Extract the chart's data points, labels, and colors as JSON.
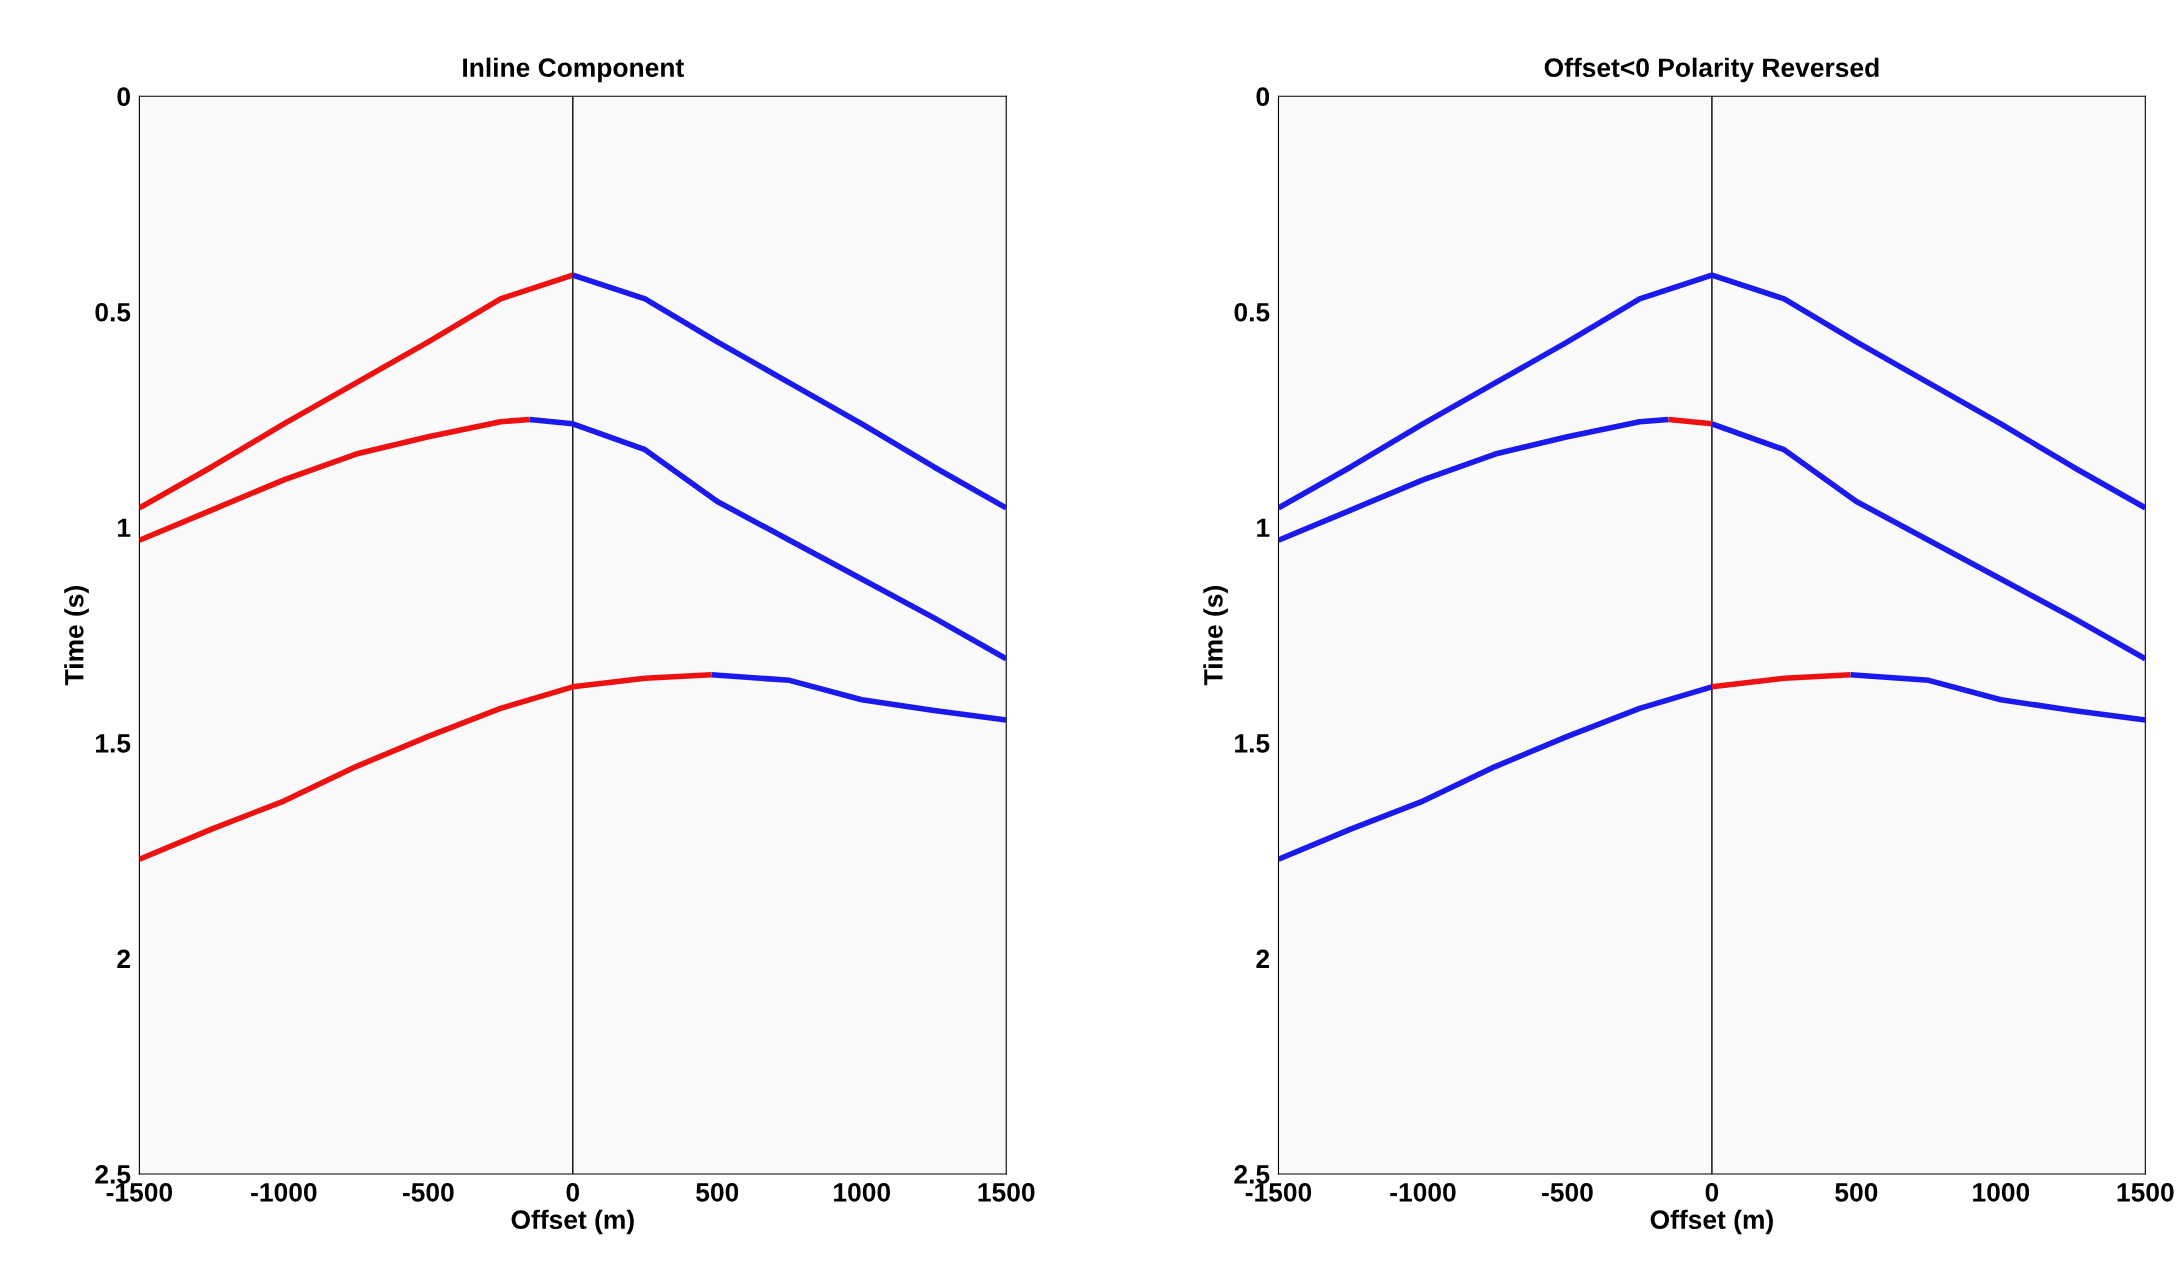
{
  "chart_data": [
    {
      "type": "line",
      "title": "Inline Component",
      "xlabel": "Offset (m)",
      "ylabel": "Time (s)",
      "xlim": [
        -1500,
        1500
      ],
      "ylim": [
        2.5,
        0
      ],
      "xticks": [
        -1500,
        -1000,
        -500,
        0,
        500,
        1000,
        1500
      ],
      "yticks": [
        0,
        0.5,
        1,
        1.5,
        2,
        2.5
      ],
      "grid": false,
      "ref_lines": [
        {
          "axis": "x",
          "value": 0,
          "color": "#000000"
        }
      ],
      "series": [
        {
          "color": "#ee1111",
          "x": [
            -1500,
            -1250,
            -1000,
            -750,
            -500,
            -250,
            0
          ],
          "values": [
            0.955,
            0.86,
            0.76,
            0.665,
            0.57,
            0.47,
            0.415
          ]
        },
        {
          "color": "#1a1aee",
          "x": [
            0,
            250,
            500,
            750,
            1000,
            1250,
            1500
          ],
          "values": [
            0.415,
            0.47,
            0.57,
            0.665,
            0.76,
            0.86,
            0.955
          ]
        },
        {
          "color": "#ee1111",
          "x": [
            -1500,
            -1250,
            -1000,
            -750,
            -500,
            -250,
            -150
          ],
          "values": [
            1.03,
            0.96,
            0.89,
            0.83,
            0.79,
            0.755,
            0.75
          ]
        },
        {
          "color": "#1a1aee",
          "x": [
            -150,
            0,
            250,
            500,
            750,
            1000,
            1250,
            1500
          ],
          "values": [
            0.75,
            0.76,
            0.82,
            0.94,
            1.03,
            1.12,
            1.21,
            1.305
          ]
        },
        {
          "color": "#ee1111",
          "x": [
            -1500,
            -1250,
            -1000,
            -750,
            -500,
            -250,
            0,
            250,
            480
          ],
          "values": [
            1.77,
            1.7,
            1.635,
            1.555,
            1.485,
            1.42,
            1.37,
            1.35,
            1.342
          ]
        },
        {
          "color": "#1a1aee",
          "x": [
            480,
            750,
            1000,
            1250,
            1500
          ],
          "values": [
            1.342,
            1.355,
            1.4,
            1.425,
            1.447
          ]
        }
      ]
    },
    {
      "type": "line",
      "title": "Offset<0 Polarity Reversed",
      "xlabel": "Offset (m)",
      "ylabel": "Time (s)",
      "xlim": [
        -1500,
        1500
      ],
      "ylim": [
        2.5,
        0
      ],
      "xticks": [
        -1500,
        -1000,
        -500,
        0,
        500,
        1000,
        1500
      ],
      "yticks": [
        0,
        0.5,
        1,
        1.5,
        2,
        2.5
      ],
      "grid": false,
      "ref_lines": [
        {
          "axis": "x",
          "value": 0,
          "color": "#000000"
        }
      ],
      "series": [
        {
          "color": "#1a1aee",
          "x": [
            -1500,
            -1250,
            -1000,
            -750,
            -500,
            -250,
            0,
            250,
            500,
            750,
            1000,
            1250,
            1500
          ],
          "values": [
            0.955,
            0.86,
            0.76,
            0.665,
            0.57,
            0.47,
            0.415,
            0.47,
            0.57,
            0.665,
            0.76,
            0.86,
            0.955
          ]
        },
        {
          "color": "#1a1aee",
          "x": [
            -1500,
            -1250,
            -1000,
            -750,
            -500,
            -250,
            -150
          ],
          "values": [
            1.03,
            0.96,
            0.89,
            0.83,
            0.79,
            0.755,
            0.75
          ]
        },
        {
          "color": "#ee1111",
          "x": [
            -150,
            0
          ],
          "values": [
            0.75,
            0.76
          ]
        },
        {
          "color": "#1a1aee",
          "x": [
            0,
            250,
            500,
            750,
            1000,
            1250,
            1500
          ],
          "values": [
            0.76,
            0.82,
            0.94,
            1.03,
            1.12,
            1.21,
            1.305
          ]
        },
        {
          "color": "#1a1aee",
          "x": [
            -1500,
            -1250,
            -1000,
            -750,
            -500,
            -250,
            0
          ],
          "values": [
            1.77,
            1.7,
            1.635,
            1.555,
            1.485,
            1.42,
            1.37
          ]
        },
        {
          "color": "#ee1111",
          "x": [
            0,
            250,
            480
          ],
          "values": [
            1.37,
            1.35,
            1.342
          ]
        },
        {
          "color": "#1a1aee",
          "x": [
            480,
            750,
            1000,
            1250,
            1500
          ],
          "values": [
            1.342,
            1.355,
            1.4,
            1.425,
            1.447
          ]
        }
      ]
    }
  ]
}
